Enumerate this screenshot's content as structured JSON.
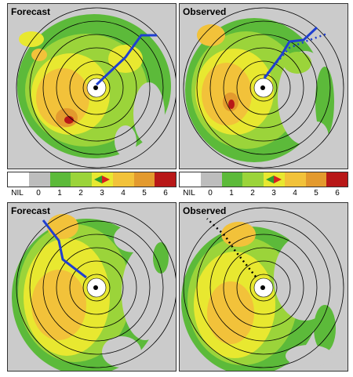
{
  "panels": [
    {
      "title": "Forecast"
    },
    {
      "title": "Observed"
    },
    {
      "title": "Forecast"
    },
    {
      "title": "Observed"
    }
  ],
  "colorbar": {
    "labels": [
      "NIL",
      "0",
      "1",
      "2",
      "3",
      "4",
      "5",
      "6"
    ],
    "colors": [
      "#ffffff",
      "#bdbdbd",
      "#5cba3a",
      "#9bd43a",
      "#e8e830",
      "#f2c23a",
      "#e39a2e",
      "#b81818"
    ]
  }
}
